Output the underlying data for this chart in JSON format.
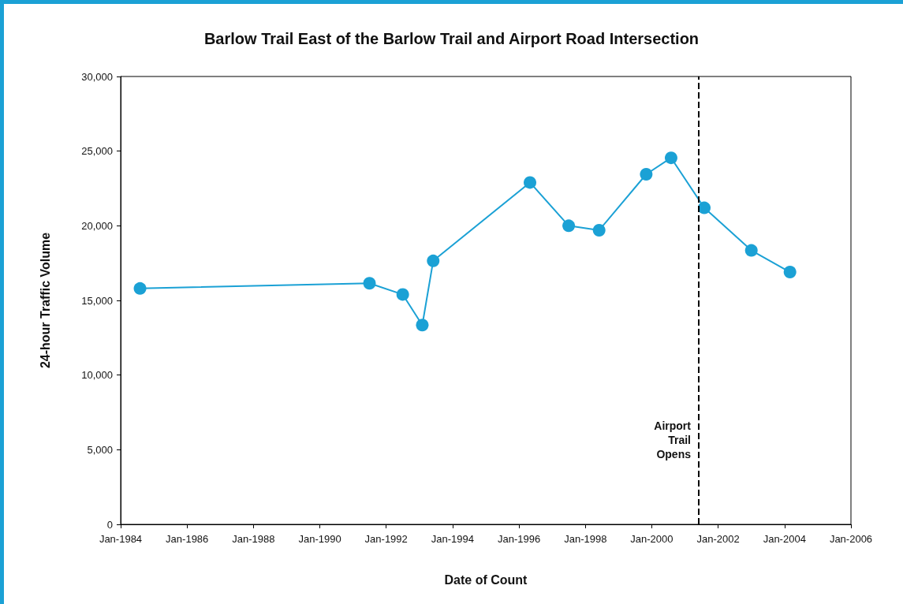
{
  "chart_data": {
    "type": "line",
    "title": "Barlow Trail East of the Barlow Trail and Airport Road Intersection",
    "xlabel": "Date of Count",
    "ylabel": "24-hour Traffic Volume",
    "x": [
      "1984-08",
      "1991-07",
      "1992-07",
      "1993-02",
      "1993-06",
      "1996-05",
      "1997-07",
      "1998-06",
      "1999-11",
      "2000-08",
      "2001-08",
      "2003-01",
      "2004-03"
    ],
    "series": [
      {
        "color": "#1ba1d5",
        "values": [
          15800,
          16150,
          15400,
          13350,
          17650,
          22900,
          20000,
          19700,
          23450,
          24550,
          21200,
          18350,
          16900
        ]
      }
    ],
    "xlim": [
      "1984-01",
      "2006-01"
    ],
    "xticks": [
      {
        "value": "1984-01",
        "label": "Jan-1984"
      },
      {
        "value": "1986-01",
        "label": "Jan-1986"
      },
      {
        "value": "1988-01",
        "label": "Jan-1988"
      },
      {
        "value": "1990-01",
        "label": "Jan-1990"
      },
      {
        "value": "1992-01",
        "label": "Jan-1992"
      },
      {
        "value": "1994-01",
        "label": "Jan-1994"
      },
      {
        "value": "1996-01",
        "label": "Jan-1996"
      },
      {
        "value": "1998-01",
        "label": "Jan-1998"
      },
      {
        "value": "2000-01",
        "label": "Jan-2000"
      },
      {
        "value": "2002-01",
        "label": "Jan-2002"
      },
      {
        "value": "2004-01",
        "label": "Jan-2004"
      },
      {
        "value": "2006-01",
        "label": "Jan-2006"
      }
    ],
    "ylim": [
      0,
      30000
    ],
    "yticks": [
      {
        "value": 0,
        "label": "0"
      },
      {
        "value": 5000,
        "label": "5,000"
      },
      {
        "value": 10000,
        "label": "10,000"
      },
      {
        "value": 15000,
        "label": "15,000"
      },
      {
        "value": 20000,
        "label": "20,000"
      },
      {
        "value": 25000,
        "label": "25,000"
      },
      {
        "value": 30000,
        "label": "30,000"
      }
    ],
    "ref_lines": [
      {
        "axis": "x",
        "value": "2001-06",
        "label": "Airport\nTrail\nOpens",
        "color": "#000000",
        "line_style": "dashed"
      }
    ],
    "grid": false,
    "marker": "circle",
    "line_style": "solid"
  }
}
